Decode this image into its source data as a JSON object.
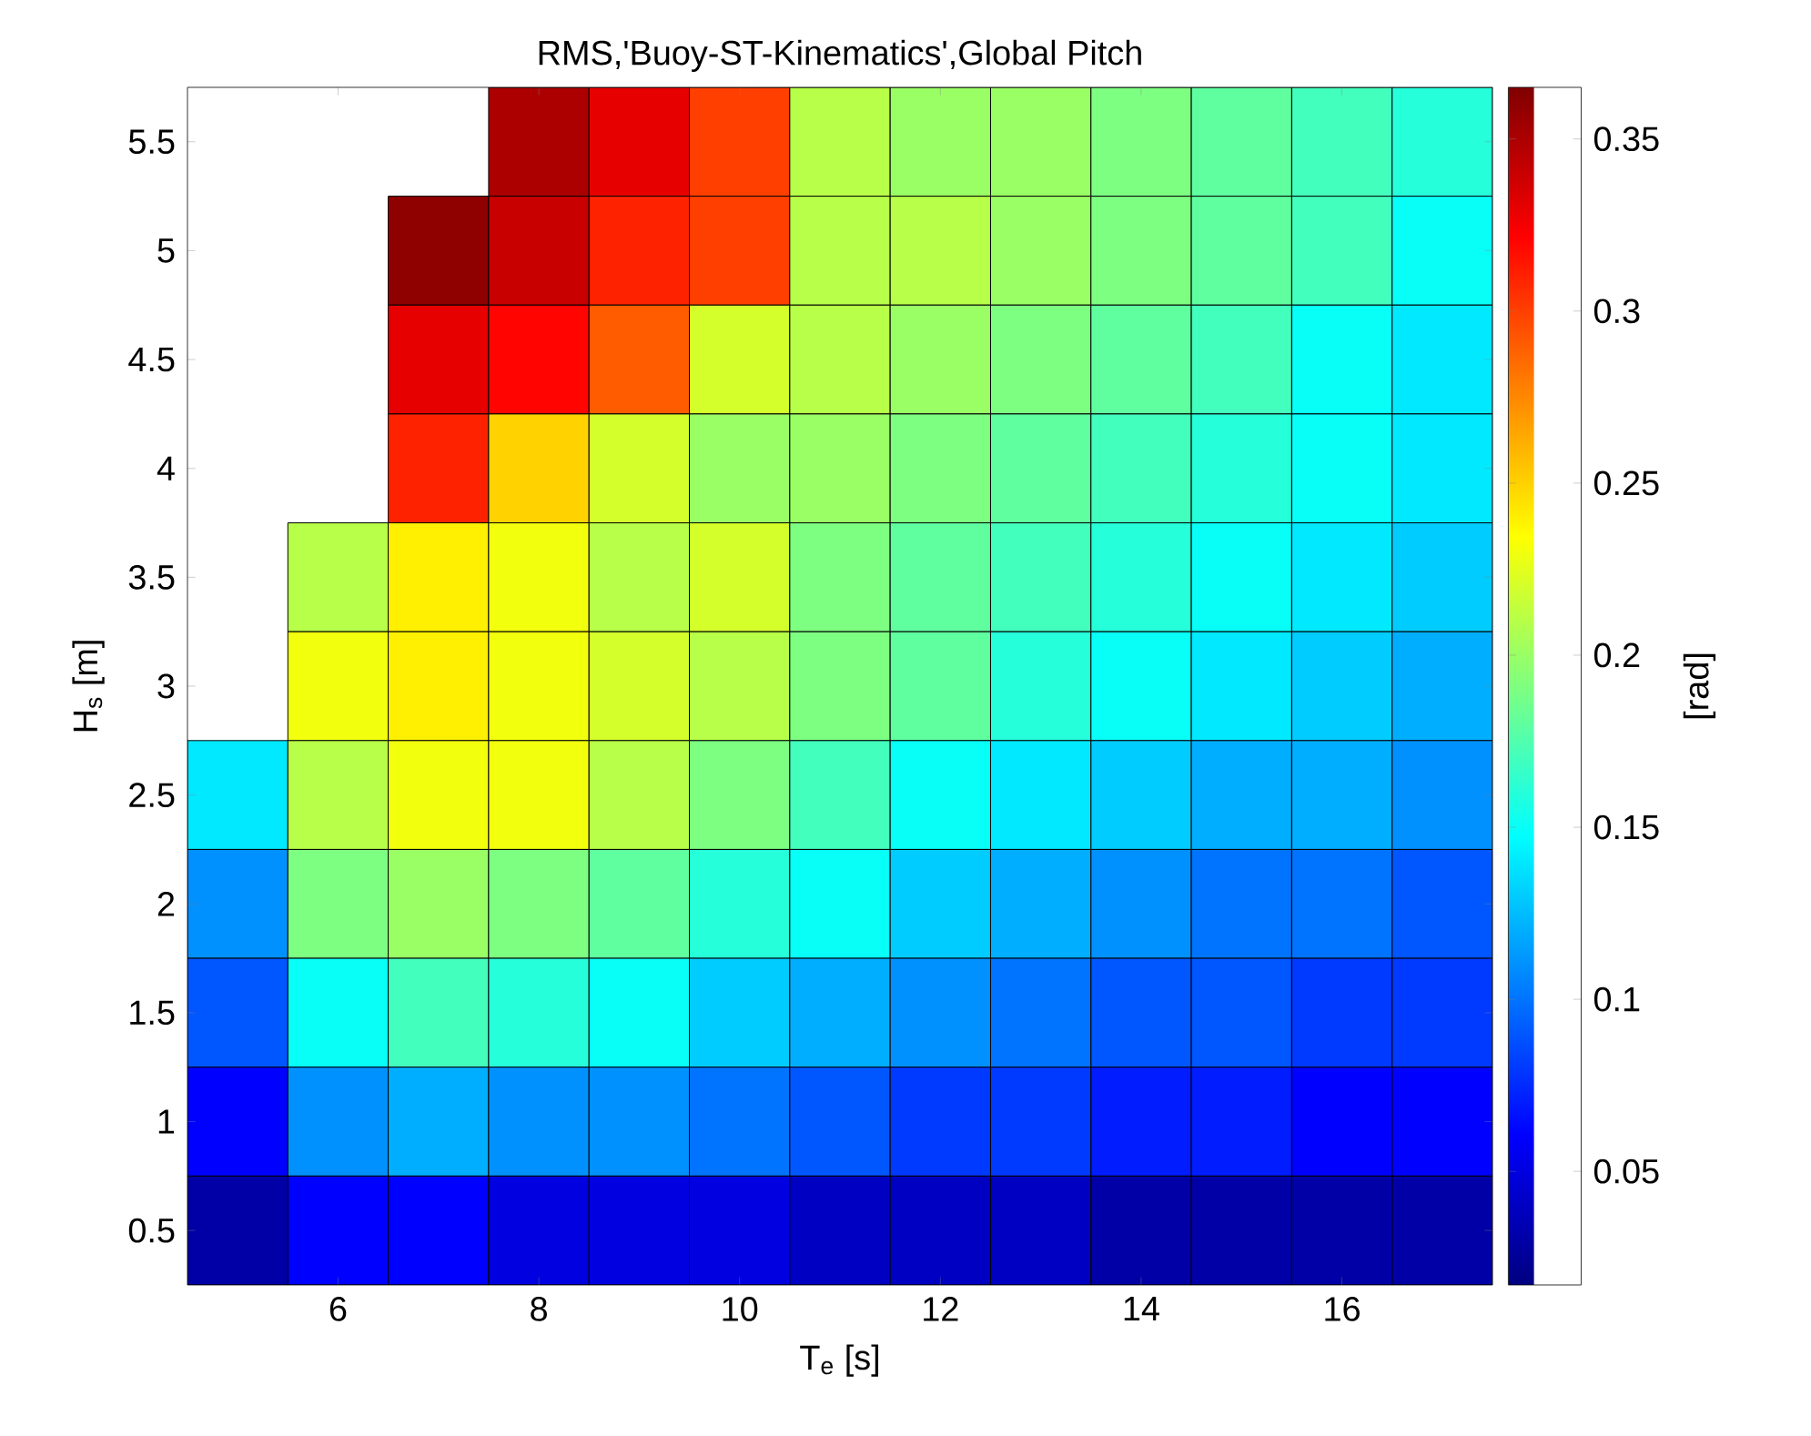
{
  "chart_data": {
    "type": "heatmap",
    "title": "RMS,'Buoy-ST-Kinematics',Global Pitch",
    "xlabel": "T$_{e}$ [s]",
    "ylabel": "H$_{s}$ [m]",
    "clabel": "[rad]",
    "categories": [
      null,
      "6",
      null,
      "8",
      null,
      "10",
      null,
      "12",
      null,
      "14",
      null,
      "16",
      null
    ],
    "y_categories": [
      "5.5",
      "5",
      "4.5",
      "4",
      "3.5",
      "3",
      "2.5",
      "2",
      "1.5",
      "1",
      "0.5"
    ],
    "cells": [
      [
        null,
        null,
        null,
        0.35,
        0.33,
        0.3,
        0.21,
        0.2,
        0.2,
        0.19,
        0.18,
        0.17,
        0.16
      ],
      [
        null,
        null,
        0.36,
        0.34,
        0.31,
        0.3,
        0.21,
        0.21,
        0.2,
        0.19,
        0.18,
        0.17,
        0.15
      ],
      [
        null,
        null,
        0.33,
        0.32,
        0.29,
        0.22,
        0.21,
        0.2,
        0.19,
        0.18,
        0.17,
        0.15,
        0.14
      ],
      [
        null,
        null,
        0.31,
        0.25,
        0.22,
        0.2,
        0.2,
        0.19,
        0.18,
        0.17,
        0.16,
        0.15,
        0.14
      ],
      [
        null,
        0.21,
        0.24,
        0.23,
        0.21,
        0.22,
        0.19,
        0.18,
        0.17,
        0.16,
        0.15,
        0.14,
        0.13
      ],
      [
        null,
        0.23,
        0.24,
        0.23,
        0.22,
        0.21,
        0.19,
        0.18,
        0.16,
        0.15,
        0.14,
        0.13,
        0.12
      ],
      [
        0.14,
        0.21,
        0.23,
        0.23,
        0.21,
        0.19,
        0.17,
        0.15,
        0.14,
        0.13,
        0.12,
        0.12,
        0.11
      ],
      [
        0.11,
        0.19,
        0.2,
        0.19,
        0.18,
        0.16,
        0.15,
        0.13,
        0.12,
        0.11,
        0.1,
        0.1,
        0.09
      ],
      [
        0.09,
        0.15,
        0.17,
        0.16,
        0.15,
        0.13,
        0.12,
        0.11,
        0.1,
        0.09,
        0.09,
        0.08,
        0.08
      ],
      [
        0.06,
        0.11,
        0.12,
        0.11,
        0.11,
        0.1,
        0.09,
        0.08,
        0.08,
        0.07,
        0.07,
        0.06,
        0.06
      ],
      [
        0.03,
        0.06,
        0.06,
        0.05,
        0.05,
        0.05,
        0.04,
        0.04,
        0.04,
        0.03,
        0.03,
        0.03,
        0.03
      ]
    ],
    "clim": [
      0.017,
      0.365
    ],
    "cticks": [
      0.05,
      0.1,
      0.15,
      0.2,
      0.25,
      0.3,
      0.35
    ]
  }
}
